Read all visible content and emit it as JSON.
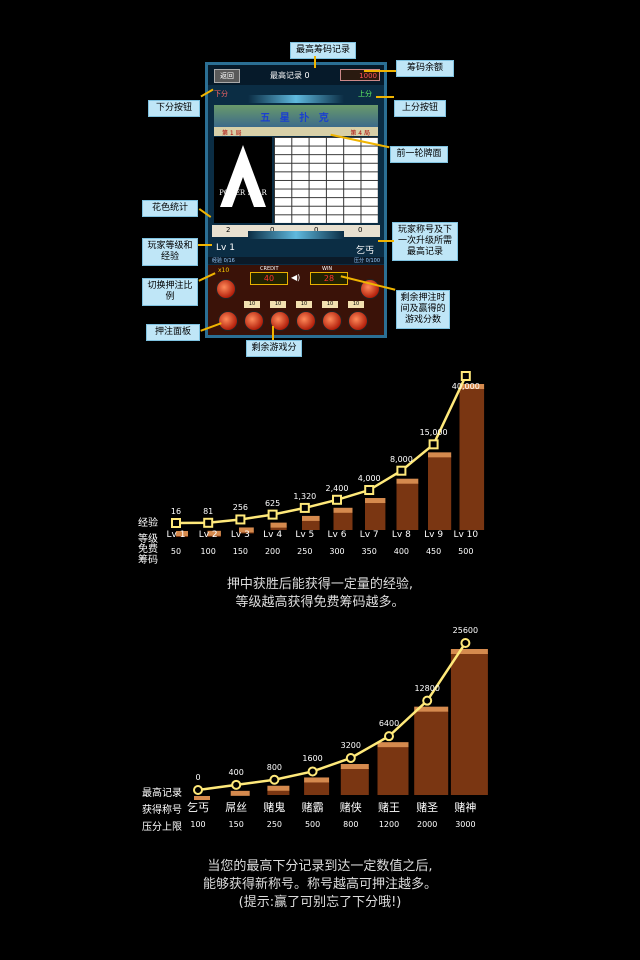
{
  "game": {
    "back_label": "返回",
    "hiscore_label": "最高记录 0",
    "credit_value": "1000",
    "down_label": "下分",
    "up_label": "上分",
    "banner_title": "五 星 扑 克",
    "stat_left": "第 1 局",
    "stat_right": "第 4 局",
    "logo_text": "POKER STAR",
    "suits": [
      "2",
      "0",
      "0",
      "0"
    ],
    "level": "Lv 1",
    "title_name": "乞丐",
    "exp_left": "经验 0/16",
    "exp_right": "压分 0/100",
    "credit_label": "CREDIT",
    "credit_meter": "40",
    "win_label": "WIN",
    "win_meter": "28",
    "bet_ratio": "x10",
    "chip_labels": [
      "10",
      "10",
      "10",
      "10",
      "10"
    ]
  },
  "callouts": {
    "top_record": "最高筹码记录",
    "balance": "筹码余额",
    "down_btn": "下分按钮",
    "up_btn": "上分按钮",
    "last_round": "前一轮牌面",
    "suit_stats": "花色统计",
    "player_level": "玩家等级和经验",
    "title_info": "玩家称号及下一次升级所需最高记录",
    "bet_ratio": "切换押注比例",
    "bet_panel": "押注面板",
    "remain_time": "剩余押注时间及赢得的游戏分数",
    "remain_score": "剩余游戏分"
  },
  "chart1": {
    "row_labels": [
      "经验",
      "等级",
      "免费筹码"
    ],
    "caption": [
      "押中获胜后能获得一定量的经验,",
      "等级越高获得免费筹码越多。"
    ]
  },
  "chart2": {
    "row_labels": [
      "最高记录",
      "获得称号",
      "压分上限"
    ],
    "caption": [
      "当您的最高下分记录到达一定数值之后,",
      "能够获得新称号。称号越高可押注越多。",
      "(提示:赢了可别忘了下分哦!)"
    ]
  },
  "chart_data": [
    {
      "type": "line",
      "categories": [
        "Lv 1",
        "Lv 2",
        "Lv 3",
        "Lv 4",
        "Lv 5",
        "Lv 6",
        "Lv 7",
        "Lv 8",
        "Lv 9",
        "Lv 10"
      ],
      "values": [
        16,
        81,
        256,
        625,
        1320,
        2400,
        4000,
        8000,
        15000,
        40000
      ],
      "value_labels": [
        "16",
        "81",
        "256",
        "625",
        "1,320",
        "2,400",
        "4,000",
        "8,000",
        "15,000",
        "40,000"
      ],
      "free_chips": [
        "50",
        "100",
        "150",
        "200",
        "250",
        "300",
        "350",
        "400",
        "450",
        "500"
      ]
    },
    {
      "type": "line",
      "categories": [
        "乞丐",
        "屌丝",
        "赌鬼",
        "赌霸",
        "赌侠",
        "赌王",
        "赌圣",
        "赌神"
      ],
      "values": [
        0,
        400,
        800,
        1600,
        3200,
        6400,
        12800,
        25600
      ],
      "value_labels": [
        "0",
        "400",
        "800",
        "1600",
        "3200",
        "6400",
        "12800",
        "25600"
      ],
      "bet_limit": [
        "100",
        "150",
        "250",
        "500",
        "800",
        "1200",
        "2000",
        "3000"
      ]
    }
  ]
}
